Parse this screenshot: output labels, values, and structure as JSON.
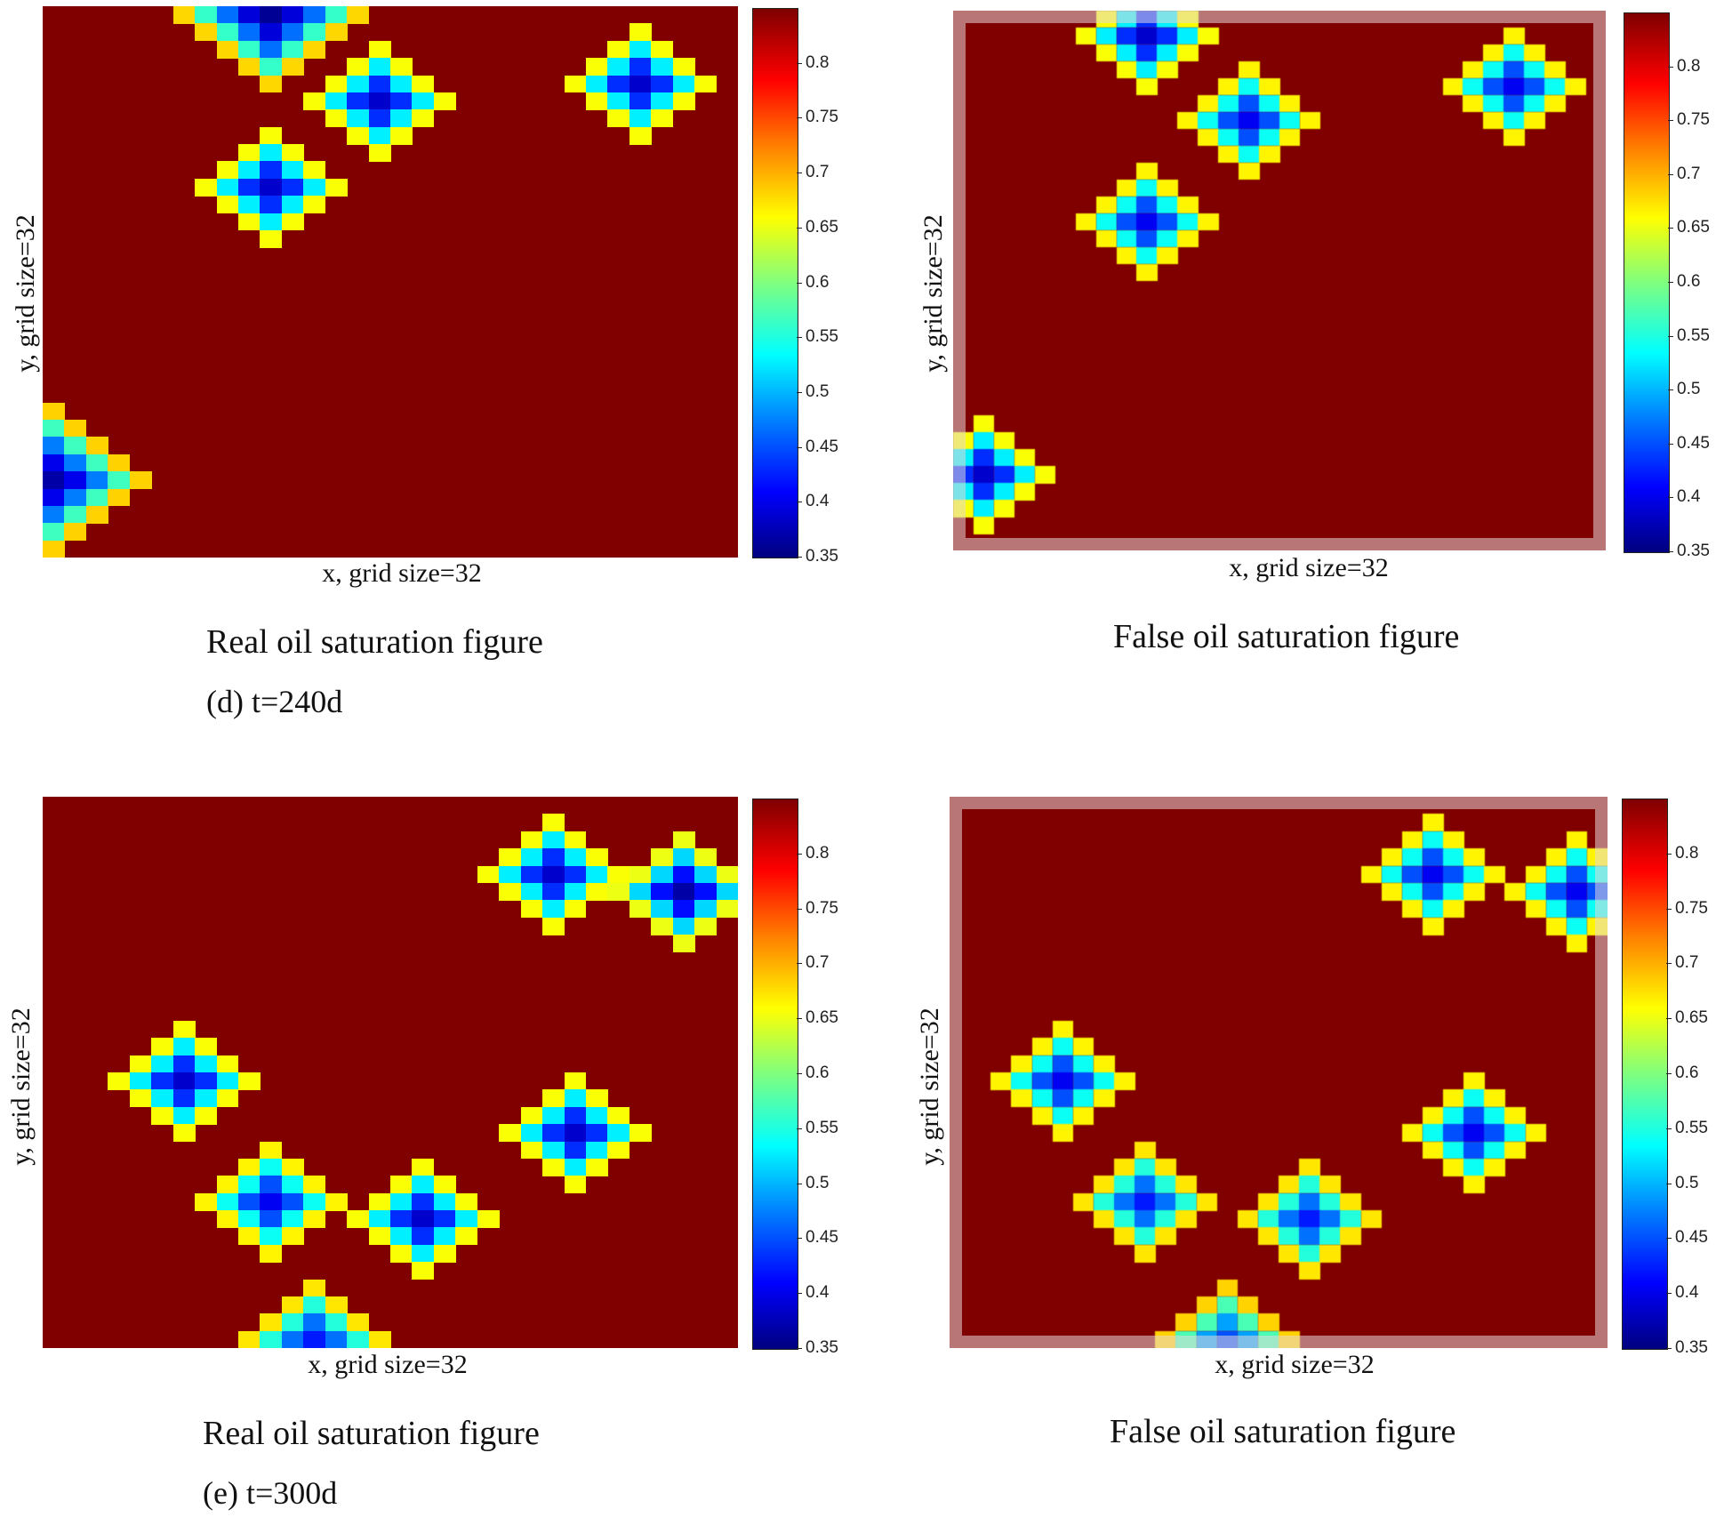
{
  "chart_data": [
    {
      "type": "heatmap",
      "title": "Real oil saturation figure",
      "subtitle": "(d) t=240d",
      "xlabel": "x, grid size=32",
      "ylabel": "y, grid size=32",
      "grid": [
        32,
        32
      ],
      "colorbar": {
        "range": [
          0.35,
          0.85
        ],
        "ticks": [
          "0.8",
          "0.75",
          "0.7",
          "0.65",
          "0.6",
          "0.55",
          "0.5",
          "0.45",
          "0.4",
          "0.35"
        ]
      },
      "background_value": 0.85,
      "low_saturation_zones": [
        {
          "center": [
            10,
            0
          ],
          "radius": 4,
          "min_value": 0.35
        },
        {
          "center": [
            15,
            5
          ],
          "radius": 3,
          "min_value": 0.38
        },
        {
          "center": [
            27,
            4
          ],
          "radius": 3,
          "min_value": 0.38
        },
        {
          "center": [
            10,
            10
          ],
          "radius": 3,
          "min_value": 0.38
        },
        {
          "center": [
            0,
            27
          ],
          "radius": 4,
          "min_value": 0.36
        }
      ]
    },
    {
      "type": "heatmap",
      "title": "False oil saturation figure",
      "xlabel": "x, grid size=32",
      "ylabel": "y, grid size=32",
      "grid": [
        32,
        32
      ],
      "colorbar": {
        "range": [
          0.35,
          0.85
        ],
        "ticks": [
          "0.8",
          "0.75",
          "0.7",
          "0.65",
          "0.6",
          "0.55",
          "0.5",
          "0.45",
          "0.4",
          "0.35"
        ]
      },
      "background_value": 0.85,
      "low_saturation_zones": [
        {
          "center": [
            9,
            1
          ],
          "radius": 3,
          "min_value": 0.38
        },
        {
          "center": [
            14,
            6
          ],
          "radius": 3,
          "min_value": 0.4
        },
        {
          "center": [
            27,
            4
          ],
          "radius": 3,
          "min_value": 0.4
        },
        {
          "center": [
            9,
            12
          ],
          "radius": 3,
          "min_value": 0.4
        },
        {
          "center": [
            1,
            27
          ],
          "radius": 3,
          "min_value": 0.38
        }
      ]
    },
    {
      "type": "heatmap",
      "title": "Real oil saturation figure",
      "subtitle": "(e) t=300d",
      "xlabel": "x, grid size=32",
      "ylabel": "y, grid size=32",
      "grid": [
        32,
        32
      ],
      "colorbar": {
        "range": [
          0.35,
          0.85
        ],
        "ticks": [
          "0.8",
          "0.75",
          "0.7",
          "0.65",
          "0.6",
          "0.55",
          "0.5",
          "0.45",
          "0.4",
          "0.35"
        ]
      },
      "background_value": 0.85,
      "low_saturation_zones": [
        {
          "center": [
            23,
            4
          ],
          "radius": 3,
          "min_value": 0.38
        },
        {
          "center": [
            29,
            5
          ],
          "radius": 3,
          "min_value": 0.36
        },
        {
          "center": [
            6,
            16
          ],
          "radius": 3,
          "min_value": 0.38
        },
        {
          "center": [
            24,
            19
          ],
          "radius": 3,
          "min_value": 0.38
        },
        {
          "center": [
            10,
            23
          ],
          "radius": 3,
          "min_value": 0.4
        },
        {
          "center": [
            17,
            24
          ],
          "radius": 3,
          "min_value": 0.38
        },
        {
          "center": [
            12,
            31
          ],
          "radius": 3,
          "min_value": 0.42
        }
      ]
    },
    {
      "type": "heatmap",
      "title": "False oil saturation figure",
      "xlabel": "x, grid size=32",
      "ylabel": "y, grid size=32",
      "grid": [
        32,
        32
      ],
      "colorbar": {
        "range": [
          0.35,
          0.85
        ],
        "ticks": [
          "0.8",
          "0.75",
          "0.7",
          "0.65",
          "0.6",
          "0.55",
          "0.5",
          "0.45",
          "0.4",
          "0.35"
        ]
      },
      "background_value": 0.85,
      "low_saturation_zones": [
        {
          "center": [
            23,
            4
          ],
          "radius": 3,
          "min_value": 0.4
        },
        {
          "center": [
            30,
            5
          ],
          "radius": 3,
          "min_value": 0.4
        },
        {
          "center": [
            5,
            16
          ],
          "radius": 3,
          "min_value": 0.4
        },
        {
          "center": [
            25,
            19
          ],
          "radius": 3,
          "min_value": 0.4
        },
        {
          "center": [
            9,
            23
          ],
          "radius": 3,
          "min_value": 0.42
        },
        {
          "center": [
            17,
            24
          ],
          "radius": 3,
          "min_value": 0.42
        },
        {
          "center": [
            13,
            31
          ],
          "radius": 3,
          "min_value": 0.45
        }
      ]
    }
  ]
}
